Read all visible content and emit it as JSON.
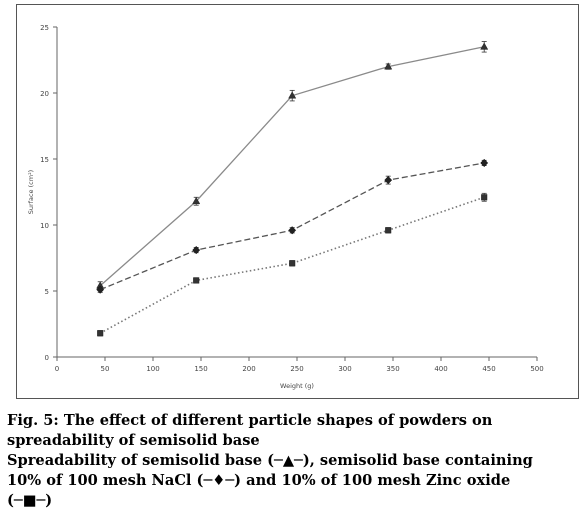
{
  "chart_data": {
    "type": "line",
    "xlabel": "Weight (g)",
    "ylabel": "Surface (cm²)",
    "xlim": [
      0,
      500
    ],
    "ylim": [
      0,
      25
    ],
    "x_ticks": [
      0,
      50,
      100,
      150,
      200,
      250,
      300,
      350,
      400,
      450,
      500
    ],
    "y_ticks": [
      0,
      5,
      10,
      15,
      20,
      25
    ],
    "grid": false,
    "legend": "none",
    "series": [
      {
        "name": "Spreadability of semisolid base",
        "marker": "triangle",
        "line_style": "solid",
        "color": "#8a8a8a",
        "x": [
          45,
          145,
          245,
          345,
          445
        ],
        "y": [
          5.4,
          11.8,
          19.8,
          22.0,
          23.5
        ],
        "errors": [
          0.3,
          0.3,
          0.4,
          0.2,
          0.4
        ]
      },
      {
        "name": "semisolid base containing 10% of 100 mesh NaCl",
        "marker": "diamond",
        "line_style": "dashed",
        "color": "#555555",
        "x": [
          45,
          145,
          245,
          345,
          445
        ],
        "y": [
          5.1,
          8.1,
          9.6,
          13.4,
          14.7
        ],
        "errors": [
          0.2,
          0.2,
          0.2,
          0.3,
          0.2
        ]
      },
      {
        "name": "10% of 100 mesh Zinc oxide",
        "marker": "square",
        "line_style": "dotted",
        "color": "#777777",
        "x": [
          45,
          145,
          245,
          345,
          445
        ],
        "y": [
          1.8,
          5.8,
          7.1,
          9.6,
          12.1
        ],
        "errors": [
          0.2,
          0.2,
          0.2,
          0.2,
          0.3
        ]
      }
    ]
  },
  "caption": {
    "line1": "Fig. 5: The effect of different particle shapes of powders on",
    "line2": "spreadability of semisolid base",
    "line3a": "Spreadability of semisolid base (",
    "sym_triangle": "─▲─",
    "line3b": "), semisolid base containing",
    "line4a": "10% of 100 mesh NaCl (",
    "sym_diamond": "─♦─",
    "line4b": ") and 10% of 100 mesh Zinc oxide",
    "line5a": "(",
    "sym_square": "─■─",
    "line5b": ")"
  }
}
